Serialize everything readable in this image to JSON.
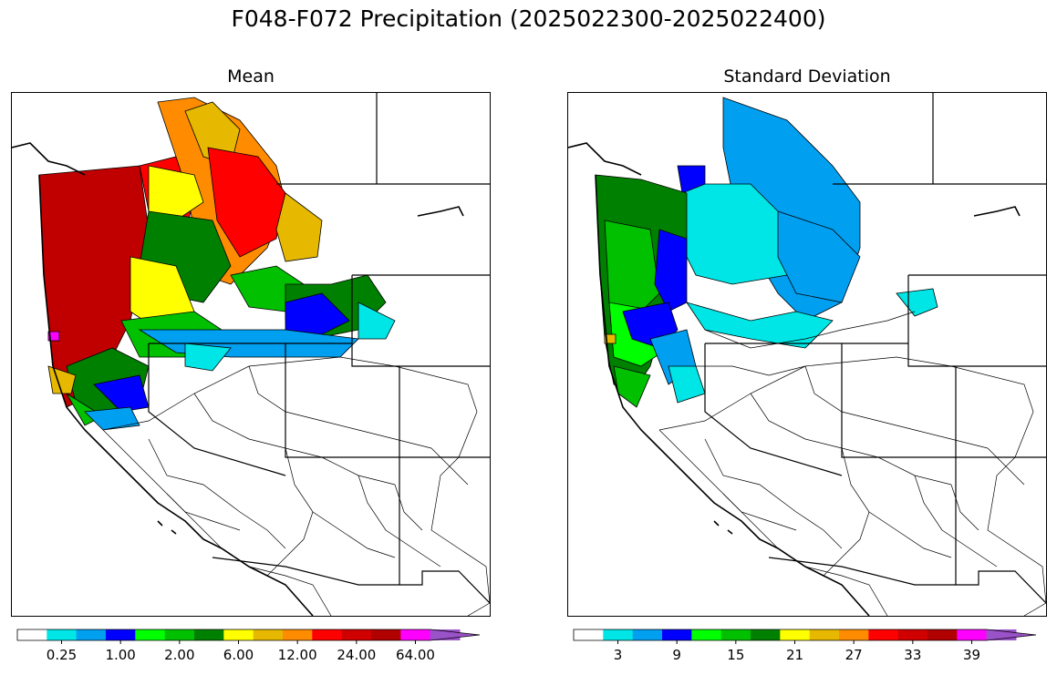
{
  "figure": {
    "title": "F048-F072 Precipitation (2025022300-2025022400)"
  },
  "panels": [
    {
      "title": "Mean",
      "colorbar": {
        "tick_labels": [
          "0.25",
          "1.00",
          "2.00",
          "6.00",
          "12.00",
          "24.00",
          "64.00"
        ],
        "colors": [
          "#ffffff",
          "#00e5e5",
          "#009ff0",
          "#0000ff",
          "#00ff00",
          "#00c000",
          "#008000",
          "#ffff00",
          "#e6b800",
          "#ff8c00",
          "#ff0000",
          "#d00000",
          "#b00000",
          "#ff00ff",
          "#9a52c8"
        ],
        "extend": "max"
      }
    },
    {
      "title": "Standard Deviation",
      "colorbar": {
        "tick_labels": [
          "3",
          "9",
          "15",
          "21",
          "27",
          "33",
          "39"
        ],
        "colors": [
          "#ffffff",
          "#00e5e5",
          "#009ff0",
          "#0000ff",
          "#00ff00",
          "#00c000",
          "#008000",
          "#ffff00",
          "#e6b800",
          "#ff8c00",
          "#ff0000",
          "#d00000",
          "#b00000",
          "#ff00ff",
          "#9a52c8"
        ],
        "extend": "max"
      }
    }
  ]
}
